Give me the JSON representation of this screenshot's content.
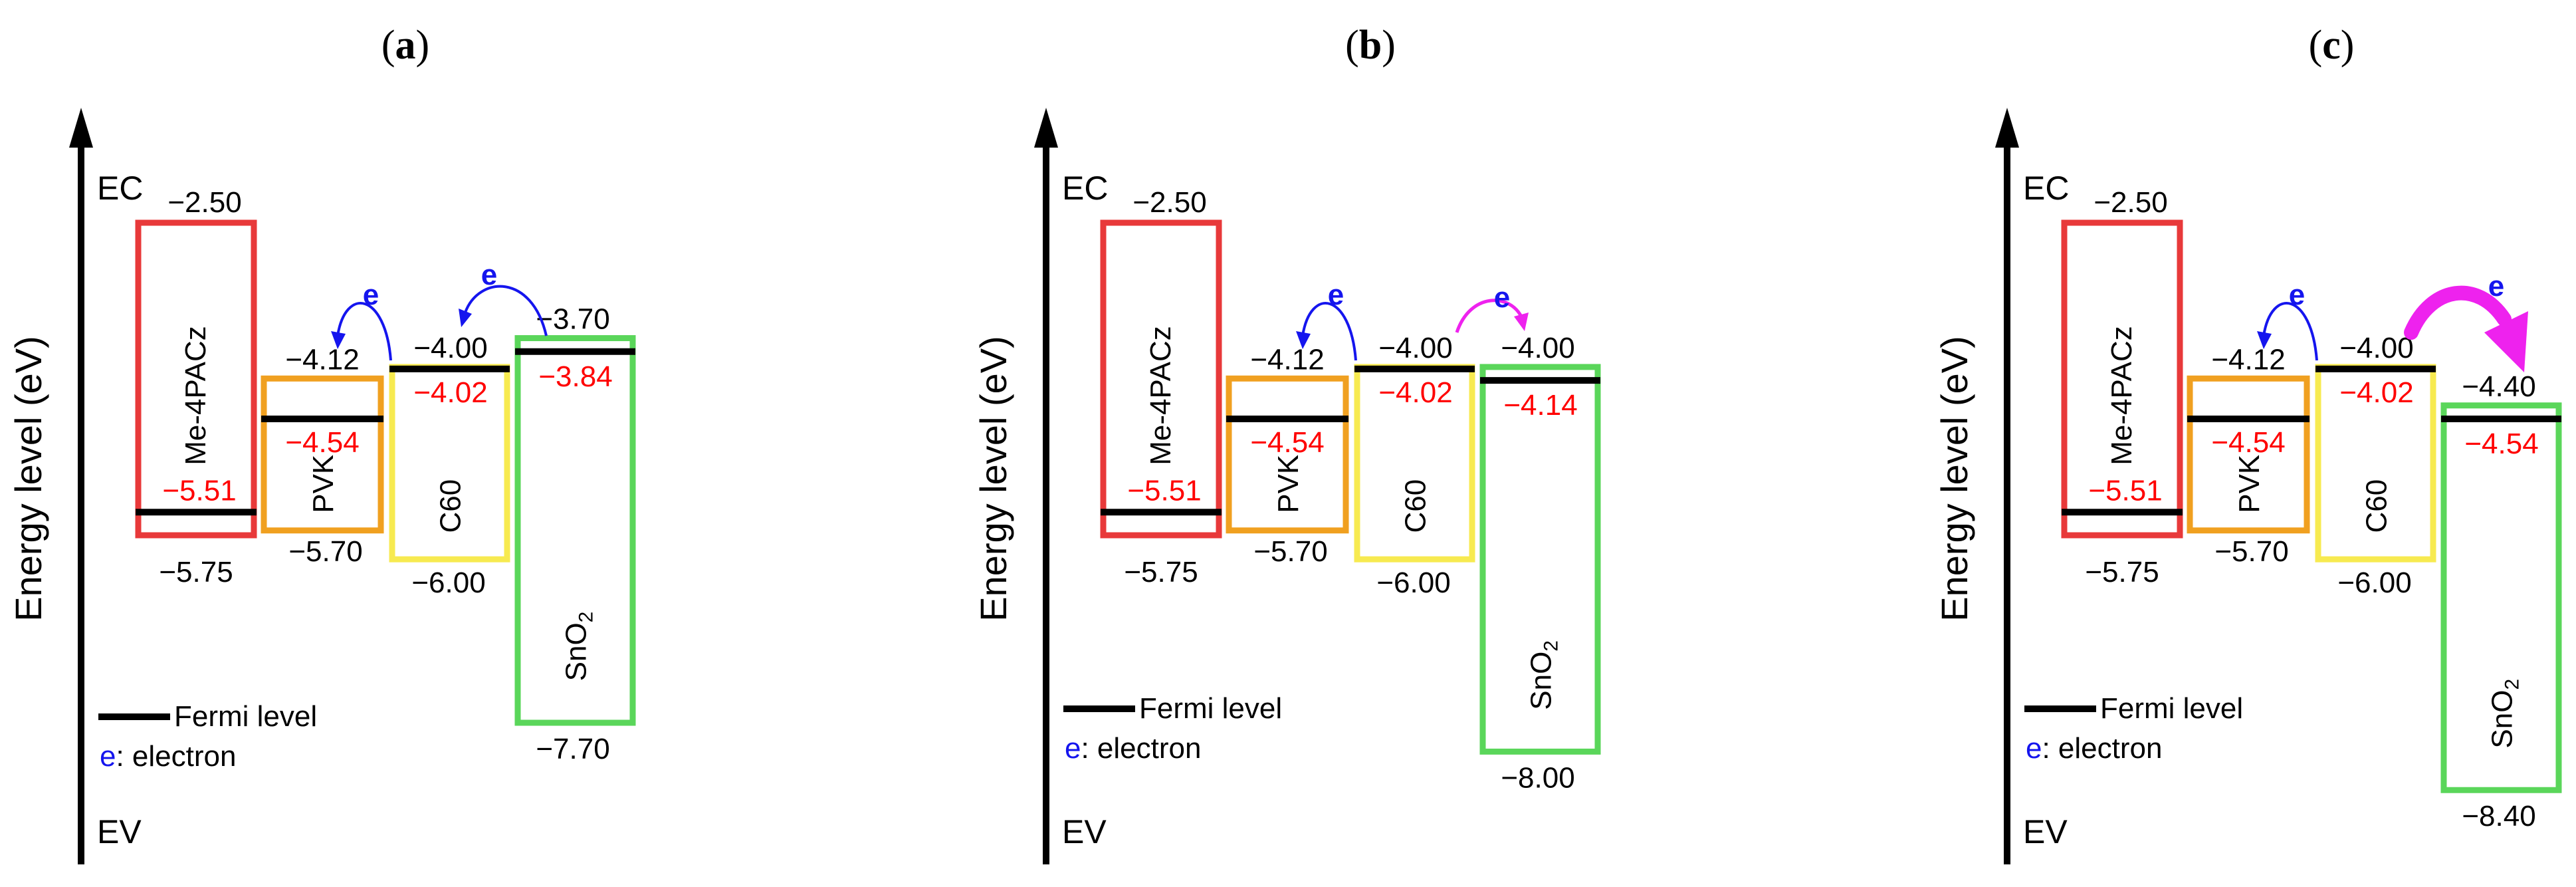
{
  "panels": [
    {
      "label_open": "(",
      "label_letter": "a",
      "label_close": ")",
      "ylabel": "Energy level (eV)",
      "ec": "EC",
      "ev": "EV",
      "me4pacz": {
        "name": "Me-4PACz",
        "lumo": 2.5,
        "homo": 5.75,
        "fermi": 5.51,
        "lumo_text": "−2.50",
        "homo_text": "−5.75",
        "fermi_text": "−5.51"
      },
      "pvk": {
        "name": "PVK",
        "lumo": 4.12,
        "homo": 5.7,
        "fermi": 4.54,
        "lumo_text": "−4.12",
        "homo_text": "−5.70",
        "fermi_text": "−4.54"
      },
      "c60": {
        "name": "C60",
        "lumo": 4.0,
        "homo": 6.0,
        "fermi": 4.02,
        "lumo_text": "−4.00",
        "homo_text": "−6.00",
        "fermi_text": "−4.02"
      },
      "sno2": {
        "name": "SnO",
        "sub": "2",
        "lumo": 3.7,
        "homo": 7.7,
        "fermi": 3.84,
        "lumo_text": "−3.70",
        "homo_text": "−7.70",
        "fermi_text": "−3.84"
      },
      "arrow1_label": "e",
      "arrow2_label": "e",
      "arrow2_color": "#1515ee",
      "arrow2_style": "thin-blue",
      "legend_fermi": "Fermi level",
      "legend_e": "e",
      "legend_electron": ": electron"
    },
    {
      "label_open": "(",
      "label_letter": "b",
      "label_close": ")",
      "ylabel": "Energy level (eV)",
      "ec": "EC",
      "ev": "EV",
      "me4pacz": {
        "name": "Me-4PACz",
        "lumo": 2.5,
        "homo": 5.75,
        "fermi": 5.51,
        "lumo_text": "−2.50",
        "homo_text": "−5.75",
        "fermi_text": "−5.51"
      },
      "pvk": {
        "name": "PVK",
        "lumo": 4.12,
        "homo": 5.7,
        "fermi": 4.54,
        "lumo_text": "−4.12",
        "homo_text": "−5.70",
        "fermi_text": "−4.54"
      },
      "c60": {
        "name": "C60",
        "lumo": 4.0,
        "homo": 6.0,
        "fermi": 4.02,
        "lumo_text": "−4.00",
        "homo_text": "−6.00",
        "fermi_text": "−4.02"
      },
      "sno2": {
        "name": "SnO",
        "sub": "2",
        "lumo": 4.0,
        "homo": 8.0,
        "fermi": 4.14,
        "lumo_text": "−4.00",
        "homo_text": "−8.00",
        "fermi_text": "−4.14"
      },
      "arrow1_label": "e",
      "arrow2_label": "e",
      "arrow2_color": "#ee22ee",
      "arrow2_style": "thin-magenta",
      "legend_fermi": "Fermi level",
      "legend_e": "e",
      "legend_electron": ": electron"
    },
    {
      "label_open": "(",
      "label_letter": "c",
      "label_close": ")",
      "ylabel": "Energy level (eV)",
      "ec": "EC",
      "ev": "EV",
      "me4pacz": {
        "name": "Me-4PACz",
        "lumo": 2.5,
        "homo": 5.75,
        "fermi": 5.51,
        "lumo_text": "−2.50",
        "homo_text": "−5.75",
        "fermi_text": "−5.51"
      },
      "pvk": {
        "name": "PVK",
        "lumo": 4.12,
        "homo": 5.7,
        "fermi": 4.54,
        "lumo_text": "−4.12",
        "homo_text": "−5.70",
        "fermi_text": "−4.54"
      },
      "c60": {
        "name": "C60",
        "lumo": 4.0,
        "homo": 6.0,
        "fermi": 4.02,
        "lumo_text": "−4.00",
        "homo_text": "−6.00",
        "fermi_text": "−4.02"
      },
      "sno2": {
        "name": "SnO",
        "sub": "2",
        "lumo": 4.4,
        "homo": 8.4,
        "fermi": 4.54,
        "lumo_text": "−4.40",
        "homo_text": "−8.40",
        "fermi_text": "−4.54"
      },
      "arrow1_label": "e",
      "arrow2_label": "e",
      "arrow2_color": "#ee22ee",
      "arrow2_style": "thick-magenta",
      "legend_fermi": "Fermi level",
      "legend_e": "e",
      "legend_electron": ": electron"
    }
  ],
  "colors": {
    "me4pacz": "#e8393a",
    "pvk": "#f0a020",
    "c60": "#f7ea50",
    "sno2": "#5ad65a",
    "fermi_value": "#ff0000",
    "electron": "#1515ee",
    "magenta": "#ee22ee",
    "fermi_line": "#000000"
  }
}
